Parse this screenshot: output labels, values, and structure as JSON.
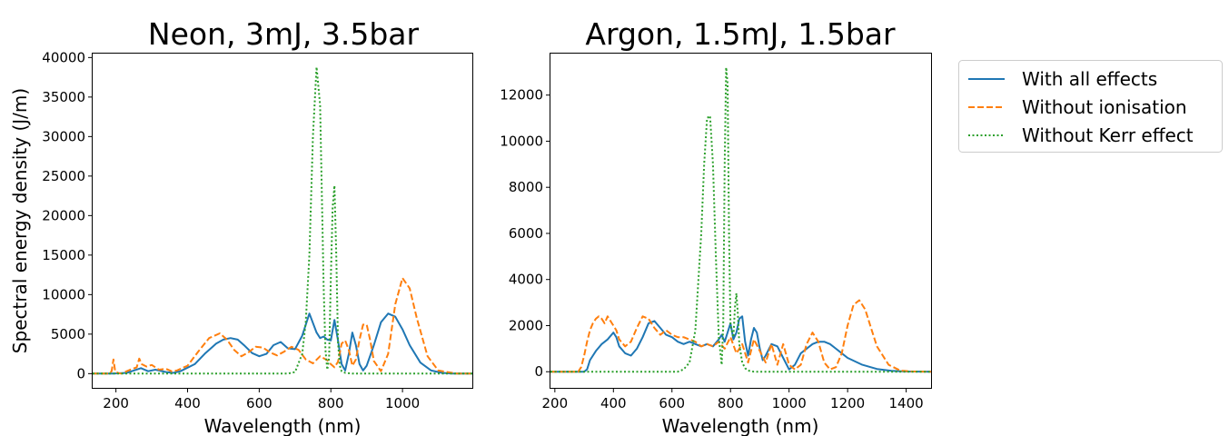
{
  "chart_data": [
    {
      "type": "line",
      "title": "Neon, 3mJ, 3.5bar",
      "xlabel": "Wavelength (nm)",
      "ylabel": "Spectral energy density (J/m)",
      "xlim": [
        135,
        1195
      ],
      "ylim": [
        -1800,
        40500
      ],
      "xticks": [
        200,
        400,
        600,
        800,
        1000
      ],
      "yticks": [
        0,
        5000,
        10000,
        15000,
        20000,
        25000,
        30000,
        35000,
        40000
      ],
      "grid": false,
      "series": [
        {
          "name": "With all effects",
          "style": "solid",
          "color": "#1f77b4",
          "x": [
            135,
            190,
            230,
            250,
            270,
            290,
            310,
            340,
            360,
            380,
            420,
            450,
            480,
            500,
            520,
            540,
            560,
            580,
            600,
            620,
            640,
            660,
            680,
            700,
            720,
            740,
            760,
            770,
            780,
            790,
            800,
            810,
            820,
            830,
            840,
            850,
            860,
            870,
            880,
            890,
            900,
            920,
            940,
            960,
            980,
            1000,
            1020,
            1050,
            1080,
            1110,
            1140,
            1195
          ],
          "y": [
            0,
            0,
            100,
            400,
            700,
            300,
            500,
            200,
            100,
            300,
            1200,
            2600,
            3800,
            4300,
            4500,
            4300,
            3500,
            2600,
            2200,
            2500,
            3600,
            4000,
            3200,
            3100,
            4800,
            7600,
            5200,
            4500,
            4700,
            4300,
            4200,
            6800,
            4200,
            1200,
            400,
            2500,
            5200,
            3600,
            1200,
            400,
            1000,
            3600,
            6500,
            7600,
            7200,
            5600,
            3600,
            1400,
            400,
            100,
            20,
            0
          ]
        },
        {
          "name": "Without ionisation",
          "style": "dashed",
          "color": "#ff7f0e",
          "x": [
            135,
            180,
            188,
            193,
            198,
            205,
            215,
            240,
            258,
            265,
            272,
            285,
            300,
            320,
            340,
            355,
            370,
            400,
            430,
            460,
            490,
            510,
            530,
            550,
            570,
            590,
            610,
            630,
            650,
            670,
            690,
            710,
            730,
            750,
            770,
            790,
            800,
            810,
            820,
            830,
            840,
            850,
            860,
            870,
            880,
            890,
            900,
            910,
            920,
            940,
            960,
            980,
            1000,
            1020,
            1040,
            1070,
            1100,
            1150,
            1195
          ],
          "y": [
            0,
            0,
            300,
            1800,
            300,
            100,
            0,
            500,
            800,
            1900,
            1200,
            900,
            1100,
            500,
            600,
            300,
            400,
            1000,
            2800,
            4500,
            5100,
            4300,
            3000,
            2200,
            2700,
            3400,
            3300,
            2700,
            2300,
            2800,
            3400,
            3000,
            1800,
            1300,
            2200,
            1700,
            1200,
            800,
            1500,
            3800,
            4200,
            3000,
            1000,
            1800,
            4300,
            6200,
            6200,
            4200,
            1600,
            300,
            2500,
            8800,
            12100,
            10800,
            7000,
            2200,
            400,
            20,
            0
          ]
        },
        {
          "name": "Without Kerr effect",
          "style": "dotted",
          "color": "#2ca02c",
          "x": [
            135,
            680,
            700,
            720,
            730,
            740,
            750,
            760,
            770,
            780,
            785,
            790,
            795,
            800,
            805,
            810,
            815,
            820,
            825,
            830,
            840,
            860,
            900,
            1195
          ],
          "y": [
            0,
            0,
            200,
            2500,
            6500,
            15000,
            30000,
            38800,
            34000,
            11000,
            3000,
            500,
            2000,
            12000,
            21000,
            23800,
            15000,
            4000,
            1000,
            300,
            100,
            0,
            0,
            0
          ]
        }
      ]
    },
    {
      "type": "line",
      "title": "Argon, 1.5mJ, 1.5bar",
      "xlabel": "Wavelength (nm)",
      "ylabel": "",
      "xlim": [
        185,
        1485
      ],
      "ylim": [
        -700,
        13800
      ],
      "xticks": [
        200,
        400,
        600,
        800,
        1000,
        1200,
        1400
      ],
      "yticks": [
        0,
        2000,
        4000,
        6000,
        8000,
        10000,
        12000
      ],
      "grid": false,
      "series": [
        {
          "name": "With all effects",
          "style": "solid",
          "color": "#1f77b4",
          "x": [
            185,
            280,
            300,
            310,
            320,
            340,
            360,
            380,
            400,
            410,
            420,
            440,
            460,
            480,
            500,
            520,
            540,
            560,
            580,
            600,
            620,
            640,
            660,
            680,
            700,
            720,
            740,
            760,
            770,
            780,
            790,
            800,
            810,
            820,
            830,
            840,
            850,
            860,
            870,
            880,
            890,
            900,
            910,
            920,
            940,
            960,
            980,
            1000,
            1020,
            1040,
            1060,
            1080,
            1100,
            1120,
            1140,
            1160,
            1180,
            1200,
            1250,
            1300,
            1350,
            1400,
            1485
          ],
          "y": [
            0,
            0,
            0,
            100,
            500,
            900,
            1200,
            1400,
            1700,
            1500,
            1100,
            800,
            700,
            1000,
            1500,
            2100,
            2200,
            1900,
            1600,
            1500,
            1300,
            1200,
            1300,
            1200,
            1100,
            1200,
            1100,
            1400,
            1600,
            1300,
            1700,
            2100,
            1400,
            1700,
            2300,
            2400,
            1300,
            700,
            1400,
            1900,
            1700,
            1000,
            500,
            700,
            1200,
            1100,
            600,
            100,
            300,
            800,
            1000,
            1200,
            1300,
            1300,
            1200,
            1000,
            800,
            600,
            300,
            120,
            40,
            10,
            0
          ]
        },
        {
          "name": "Without ionisation",
          "style": "dashed",
          "color": "#ff7f0e",
          "x": [
            185,
            280,
            290,
            300,
            310,
            320,
            330,
            340,
            350,
            360,
            370,
            380,
            390,
            400,
            410,
            420,
            440,
            460,
            480,
            500,
            520,
            540,
            560,
            580,
            600,
            620,
            640,
            660,
            680,
            700,
            720,
            740,
            760,
            780,
            800,
            820,
            840,
            860,
            880,
            900,
            920,
            940,
            960,
            980,
            1000,
            1020,
            1040,
            1060,
            1080,
            1100,
            1120,
            1140,
            1160,
            1180,
            1200,
            1220,
            1240,
            1260,
            1280,
            1300,
            1340,
            1380,
            1420,
            1485
          ],
          "y": [
            0,
            0,
            200,
            700,
            1300,
            1800,
            2100,
            2300,
            2400,
            2300,
            2100,
            2400,
            2200,
            2000,
            1800,
            1400,
            1100,
            1300,
            1900,
            2400,
            2300,
            1900,
            1600,
            1800,
            1600,
            1500,
            1500,
            1400,
            1300,
            1100,
            1200,
            1100,
            1300,
            1000,
            1500,
            800,
            1200,
            400,
            1400,
            900,
            400,
            1200,
            300,
            1200,
            300,
            100,
            300,
            1200,
            1700,
            1300,
            400,
            100,
            200,
            800,
            2000,
            2900,
            3100,
            2700,
            1900,
            1100,
            300,
            50,
            10,
            0
          ]
        },
        {
          "name": "Without Kerr effect",
          "style": "dotted",
          "color": "#2ca02c",
          "x": [
            185,
            620,
            640,
            660,
            680,
            700,
            710,
            720,
            730,
            740,
            750,
            760,
            770,
            775,
            780,
            785,
            790,
            795,
            800,
            810,
            815,
            820,
            825,
            830,
            840,
            850,
            860,
            880,
            1485
          ],
          "y": [
            0,
            0,
            100,
            400,
            1800,
            6000,
            9000,
            11000,
            11100,
            9000,
            5000,
            1500,
            300,
            2000,
            9000,
            13200,
            12500,
            6000,
            2000,
            1500,
            2800,
            3400,
            2500,
            1200,
            400,
            150,
            50,
            0,
            0
          ]
        }
      ]
    }
  ],
  "legend": {
    "placement": "outside-right",
    "entries": [
      {
        "label": "With all effects",
        "style": "solid",
        "color": "#1f77b4"
      },
      {
        "label": "Without ionisation",
        "style": "dashed",
        "color": "#ff7f0e"
      },
      {
        "label": "Without Kerr effect",
        "style": "dotted",
        "color": "#2ca02c"
      }
    ]
  }
}
